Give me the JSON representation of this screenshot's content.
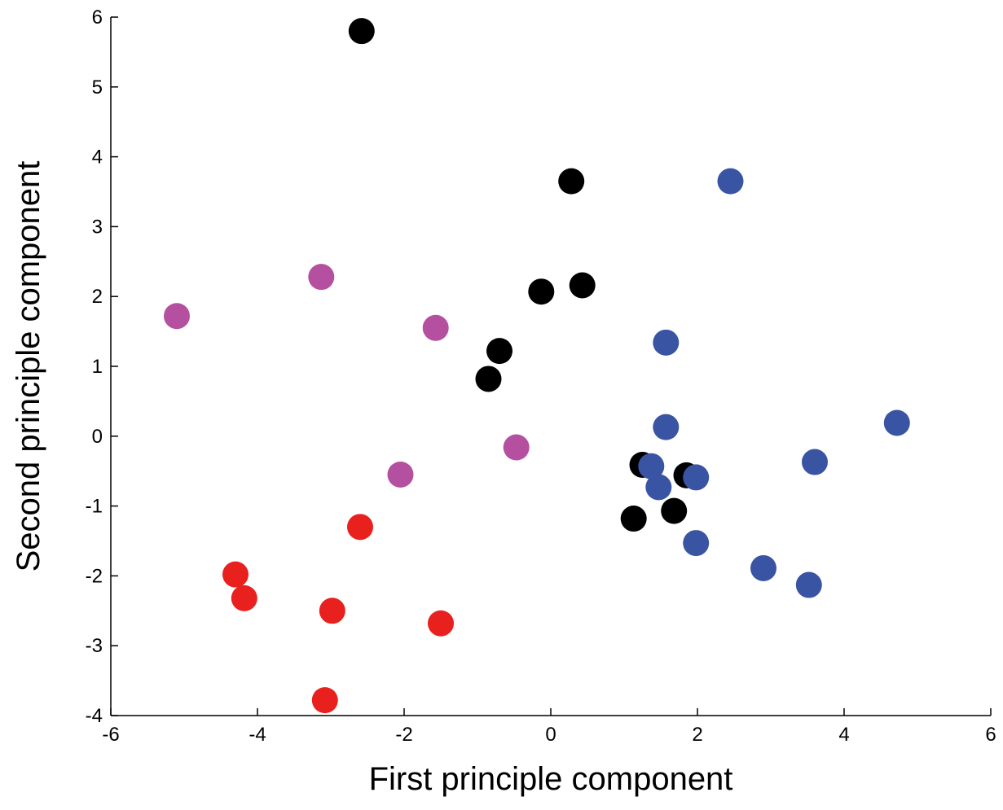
{
  "chart_data": {
    "type": "scatter",
    "title": "",
    "xlabel": "First principle component",
    "ylabel": "Second principle component",
    "xlim": [
      -6,
      6
    ],
    "ylim": [
      -4,
      6
    ],
    "xticks": [
      -6,
      -4,
      -2,
      0,
      2,
      4,
      6
    ],
    "yticks": [
      -4,
      -3,
      -2,
      -1,
      0,
      1,
      2,
      3,
      4,
      5,
      6
    ],
    "xtick_labels": [
      "-6",
      "-4",
      "-2",
      "0",
      "2",
      "4",
      "6"
    ],
    "ytick_labels": [
      "-4",
      "-3",
      "-2",
      "-1",
      "0",
      "1",
      "2",
      "3",
      "4",
      "5",
      "6"
    ],
    "grid": false,
    "legend": "none",
    "series": [
      {
        "color": "#e8211f",
        "points": [
          [
            -4.3,
            -1.98
          ],
          [
            -4.18,
            -2.32
          ],
          [
            -2.6,
            -1.3
          ],
          [
            -2.98,
            -2.5
          ],
          [
            -1.5,
            -2.68
          ],
          [
            -3.08,
            -3.78
          ]
        ]
      },
      {
        "color": "#b4509f",
        "points": [
          [
            -5.1,
            1.72
          ],
          [
            -3.13,
            2.28
          ],
          [
            -1.57,
            1.55
          ],
          [
            -2.05,
            -0.55
          ],
          [
            -0.47,
            -0.16
          ]
        ]
      },
      {
        "color": "#000000",
        "points": [
          [
            -2.58,
            5.8
          ],
          [
            0.28,
            3.65
          ],
          [
            0.43,
            2.16
          ],
          [
            -0.13,
            2.07
          ],
          [
            -0.7,
            1.22
          ],
          [
            -0.85,
            0.82
          ],
          [
            1.25,
            -0.41
          ],
          [
            1.85,
            -0.56
          ],
          [
            1.68,
            -1.07
          ],
          [
            1.13,
            -1.18
          ]
        ]
      },
      {
        "color": "#3a54a4",
        "points": [
          [
            2.45,
            3.65
          ],
          [
            1.57,
            1.34
          ],
          [
            1.57,
            0.13
          ],
          [
            4.72,
            0.19
          ],
          [
            3.6,
            -0.37
          ],
          [
            1.37,
            -0.43
          ],
          [
            1.47,
            -0.73
          ],
          [
            1.98,
            -0.59
          ],
          [
            1.98,
            -1.53
          ],
          [
            2.9,
            -1.89
          ],
          [
            3.52,
            -2.13
          ]
        ]
      }
    ]
  }
}
